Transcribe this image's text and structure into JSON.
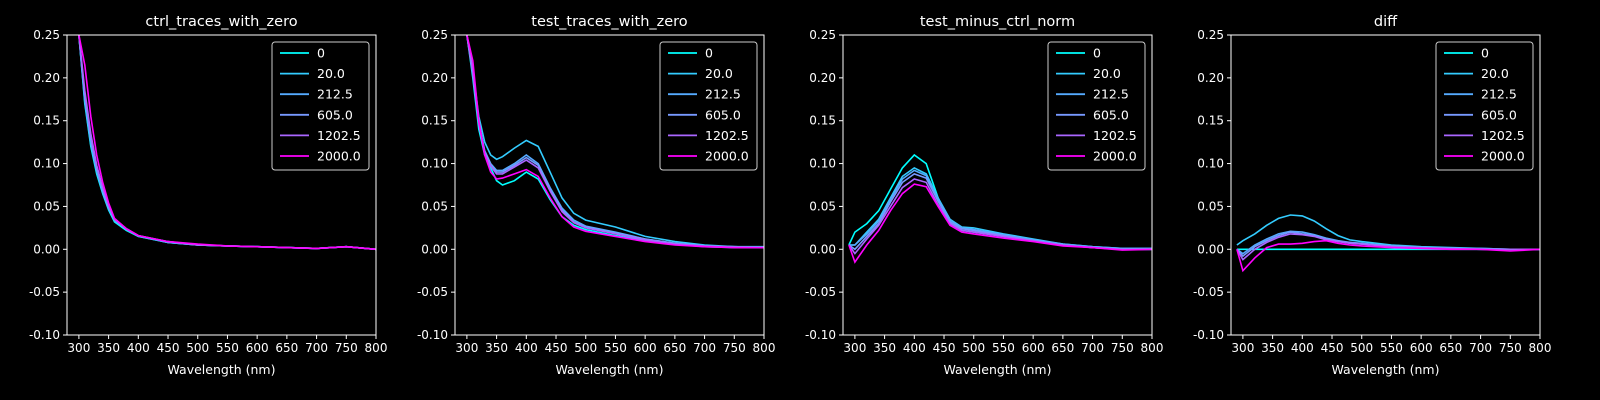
{
  "figure": {
    "background": "#000000",
    "foreground": "#ffffff"
  },
  "legend_labels": [
    "0",
    "20.0",
    "212.5",
    "605.0",
    "1202.5",
    "2000.0"
  ],
  "series_colors": [
    "#00ffff",
    "#33ccff",
    "#55aaff",
    "#7799ff",
    "#aa66ff",
    "#ff00ff"
  ],
  "chart_data": [
    {
      "type": "line",
      "title": "ctrl_traces_with_zero",
      "xlabel": "Wavelength (nm)",
      "ylabel": "",
      "xlim": [
        280,
        800
      ],
      "ylim": [
        -0.1,
        0.25
      ],
      "xticks": [
        300,
        350,
        400,
        450,
        500,
        550,
        600,
        650,
        700,
        750,
        800
      ],
      "yticks": [
        -0.1,
        -0.05,
        0.0,
        0.05,
        0.1,
        0.15,
        0.2,
        0.25
      ],
      "legend": "top-right",
      "x": [
        300,
        310,
        320,
        330,
        340,
        350,
        360,
        380,
        400,
        450,
        500,
        550,
        600,
        650,
        700,
        750,
        800
      ],
      "series": [
        {
          "name": "0",
          "values": [
            0.25,
            0.17,
            0.12,
            0.088,
            0.065,
            0.046,
            0.032,
            0.022,
            0.015,
            0.008,
            0.005,
            0.004,
            0.003,
            0.002,
            0.001,
            0.003,
            0.0
          ]
        },
        {
          "name": "20.0",
          "values": [
            0.25,
            0.172,
            0.122,
            0.09,
            0.066,
            0.047,
            0.033,
            0.023,
            0.015,
            0.008,
            0.005,
            0.004,
            0.003,
            0.002,
            0.001,
            0.003,
            0.0
          ]
        },
        {
          "name": "212.5",
          "values": [
            0.25,
            0.175,
            0.125,
            0.092,
            0.068,
            0.048,
            0.034,
            0.023,
            0.016,
            0.008,
            0.005,
            0.004,
            0.003,
            0.002,
            0.001,
            0.003,
            0.0
          ]
        },
        {
          "name": "605.0",
          "values": [
            0.25,
            0.18,
            0.13,
            0.095,
            0.07,
            0.05,
            0.035,
            0.024,
            0.016,
            0.009,
            0.005,
            0.004,
            0.003,
            0.002,
            0.001,
            0.003,
            0.0
          ]
        },
        {
          "name": "1202.5",
          "values": [
            0.25,
            0.185,
            0.135,
            0.098,
            0.072,
            0.051,
            0.035,
            0.024,
            0.016,
            0.009,
            0.005,
            0.004,
            0.003,
            0.002,
            0.001,
            0.003,
            0.0
          ]
        },
        {
          "name": "2000.0",
          "values": [
            0.25,
            0.215,
            0.155,
            0.11,
            0.078,
            0.054,
            0.036,
            0.024,
            0.016,
            0.009,
            0.006,
            0.004,
            0.003,
            0.002,
            0.001,
            0.003,
            0.0
          ]
        }
      ]
    },
    {
      "type": "line",
      "title": "test_traces_with_zero",
      "xlabel": "Wavelength (nm)",
      "ylabel": "",
      "xlim": [
        280,
        800
      ],
      "ylim": [
        -0.1,
        0.25
      ],
      "xticks": [
        300,
        350,
        400,
        450,
        500,
        550,
        600,
        650,
        700,
        750,
        800
      ],
      "yticks": [
        -0.1,
        -0.05,
        0.0,
        0.05,
        0.1,
        0.15,
        0.2,
        0.25
      ],
      "legend": "top-right",
      "x": [
        300,
        310,
        320,
        330,
        340,
        350,
        360,
        380,
        400,
        420,
        440,
        460,
        480,
        500,
        550,
        600,
        650,
        700,
        750,
        800
      ],
      "series": [
        {
          "name": "0",
          "values": [
            0.25,
            0.2,
            0.14,
            0.11,
            0.095,
            0.08,
            0.075,
            0.08,
            0.09,
            0.082,
            0.058,
            0.038,
            0.028,
            0.023,
            0.016,
            0.01,
            0.006,
            0.003,
            0.002,
            0.002
          ]
        },
        {
          "name": "20.0",
          "values": [
            0.25,
            0.21,
            0.155,
            0.125,
            0.11,
            0.105,
            0.108,
            0.118,
            0.127,
            0.12,
            0.09,
            0.06,
            0.042,
            0.034,
            0.026,
            0.015,
            0.009,
            0.005,
            0.003,
            0.003
          ]
        },
        {
          "name": "212.5",
          "values": [
            0.25,
            0.205,
            0.148,
            0.115,
            0.1,
            0.092,
            0.092,
            0.1,
            0.11,
            0.1,
            0.072,
            0.048,
            0.034,
            0.027,
            0.02,
            0.012,
            0.007,
            0.004,
            0.003,
            0.002
          ]
        },
        {
          "name": "605.0",
          "values": [
            0.25,
            0.205,
            0.147,
            0.114,
            0.099,
            0.09,
            0.09,
            0.098,
            0.107,
            0.098,
            0.07,
            0.046,
            0.032,
            0.026,
            0.019,
            0.012,
            0.007,
            0.004,
            0.003,
            0.002
          ]
        },
        {
          "name": "1202.5",
          "values": [
            0.25,
            0.206,
            0.146,
            0.112,
            0.097,
            0.088,
            0.088,
            0.096,
            0.104,
            0.095,
            0.068,
            0.044,
            0.031,
            0.025,
            0.018,
            0.011,
            0.006,
            0.004,
            0.002,
            0.002
          ]
        },
        {
          "name": "2000.0",
          "values": [
            0.25,
            0.22,
            0.15,
            0.11,
            0.09,
            0.082,
            0.083,
            0.088,
            0.093,
            0.085,
            0.06,
            0.038,
            0.026,
            0.021,
            0.015,
            0.009,
            0.005,
            0.003,
            0.002,
            0.002
          ]
        }
      ]
    },
    {
      "type": "line",
      "title": "test_minus_ctrl_norm",
      "xlabel": "Wavelength (nm)",
      "ylabel": "",
      "xlim": [
        280,
        800
      ],
      "ylim": [
        -0.1,
        0.25
      ],
      "xticks": [
        300,
        350,
        400,
        450,
        500,
        550,
        600,
        650,
        700,
        750,
        800
      ],
      "yticks": [
        -0.1,
        -0.05,
        0.0,
        0.05,
        0.1,
        0.15,
        0.2,
        0.25
      ],
      "legend": "top-right",
      "x": [
        290,
        300,
        320,
        340,
        360,
        380,
        400,
        420,
        440,
        460,
        480,
        500,
        550,
        600,
        650,
        700,
        750,
        800
      ],
      "series": [
        {
          "name": "0",
          "values": [
            0.005,
            0.02,
            0.03,
            0.045,
            0.07,
            0.095,
            0.11,
            0.1,
            0.06,
            0.03,
            0.022,
            0.02,
            0.015,
            0.01,
            0.005,
            0.002,
            0.0,
            0.0
          ]
        },
        {
          "name": "20.0",
          "values": [
            0.005,
            0.005,
            0.02,
            0.035,
            0.06,
            0.085,
            0.095,
            0.088,
            0.06,
            0.035,
            0.026,
            0.025,
            0.018,
            0.012,
            0.006,
            0.003,
            0.001,
            0.001
          ]
        },
        {
          "name": "212.5",
          "values": [
            0.005,
            0.005,
            0.018,
            0.033,
            0.058,
            0.082,
            0.092,
            0.086,
            0.058,
            0.034,
            0.025,
            0.023,
            0.017,
            0.011,
            0.006,
            0.003,
            0.001,
            0.001
          ]
        },
        {
          "name": "605.0",
          "values": [
            0.005,
            0.0,
            0.015,
            0.03,
            0.055,
            0.078,
            0.088,
            0.083,
            0.056,
            0.032,
            0.024,
            0.022,
            0.016,
            0.01,
            0.005,
            0.002,
            0.0,
            0.0
          ]
        },
        {
          "name": "1202.5",
          "values": [
            0.005,
            -0.005,
            0.012,
            0.028,
            0.05,
            0.072,
            0.082,
            0.078,
            0.052,
            0.03,
            0.022,
            0.02,
            0.015,
            0.01,
            0.005,
            0.002,
            0.0,
            0.0
          ]
        },
        {
          "name": "2000.0",
          "values": [
            0.005,
            -0.015,
            0.005,
            0.022,
            0.045,
            0.065,
            0.076,
            0.073,
            0.05,
            0.028,
            0.02,
            0.018,
            0.013,
            0.009,
            0.004,
            0.002,
            -0.001,
            0.0
          ]
        }
      ]
    },
    {
      "type": "line",
      "title": "diff",
      "xlabel": "Wavelength (nm)",
      "ylabel": "",
      "xlim": [
        280,
        800
      ],
      "ylim": [
        -0.1,
        0.25
      ],
      "xticks": [
        300,
        350,
        400,
        450,
        500,
        550,
        600,
        650,
        700,
        750,
        800
      ],
      "yticks": [
        -0.1,
        -0.05,
        0.0,
        0.05,
        0.1,
        0.15,
        0.2,
        0.25
      ],
      "legend": "top-right",
      "x": [
        290,
        300,
        320,
        340,
        360,
        380,
        400,
        420,
        440,
        460,
        480,
        500,
        550,
        600,
        650,
        700,
        750,
        800
      ],
      "series": [
        {
          "name": "0",
          "values": [
            0.0,
            0.0,
            0.0,
            0.0,
            0.0,
            0.0,
            0.0,
            0.0,
            0.0,
            0.0,
            0.0,
            0.0,
            0.0,
            0.0,
            0.0,
            0.0,
            0.0,
            0.0
          ]
        },
        {
          "name": "20.0",
          "values": [
            0.005,
            0.01,
            0.018,
            0.028,
            0.036,
            0.04,
            0.039,
            0.033,
            0.024,
            0.016,
            0.011,
            0.009,
            0.005,
            0.003,
            0.002,
            0.001,
            0.0,
            0.0
          ]
        },
        {
          "name": "212.5",
          "values": [
            0.0,
            -0.005,
            0.005,
            0.012,
            0.018,
            0.021,
            0.02,
            0.017,
            0.013,
            0.01,
            0.008,
            0.007,
            0.004,
            0.002,
            0.001,
            0.001,
            0.0,
            0.0
          ]
        },
        {
          "name": "605.0",
          "values": [
            0.0,
            -0.008,
            0.003,
            0.01,
            0.016,
            0.02,
            0.018,
            0.016,
            0.012,
            0.009,
            0.008,
            0.006,
            0.004,
            0.002,
            0.001,
            0.0,
            0.0,
            0.0
          ]
        },
        {
          "name": "1202.5",
          "values": [
            0.0,
            -0.012,
            0.0,
            0.008,
            0.014,
            0.018,
            0.017,
            0.015,
            0.011,
            0.009,
            0.007,
            0.006,
            0.003,
            0.002,
            0.001,
            0.0,
            0.0,
            0.0
          ]
        },
        {
          "name": "2000.0",
          "values": [
            0.0,
            -0.025,
            -0.01,
            0.002,
            0.006,
            0.006,
            0.007,
            0.009,
            0.01,
            0.007,
            0.005,
            0.004,
            0.002,
            0.001,
            0.0,
            0.0,
            -0.002,
            0.0
          ]
        }
      ]
    }
  ]
}
